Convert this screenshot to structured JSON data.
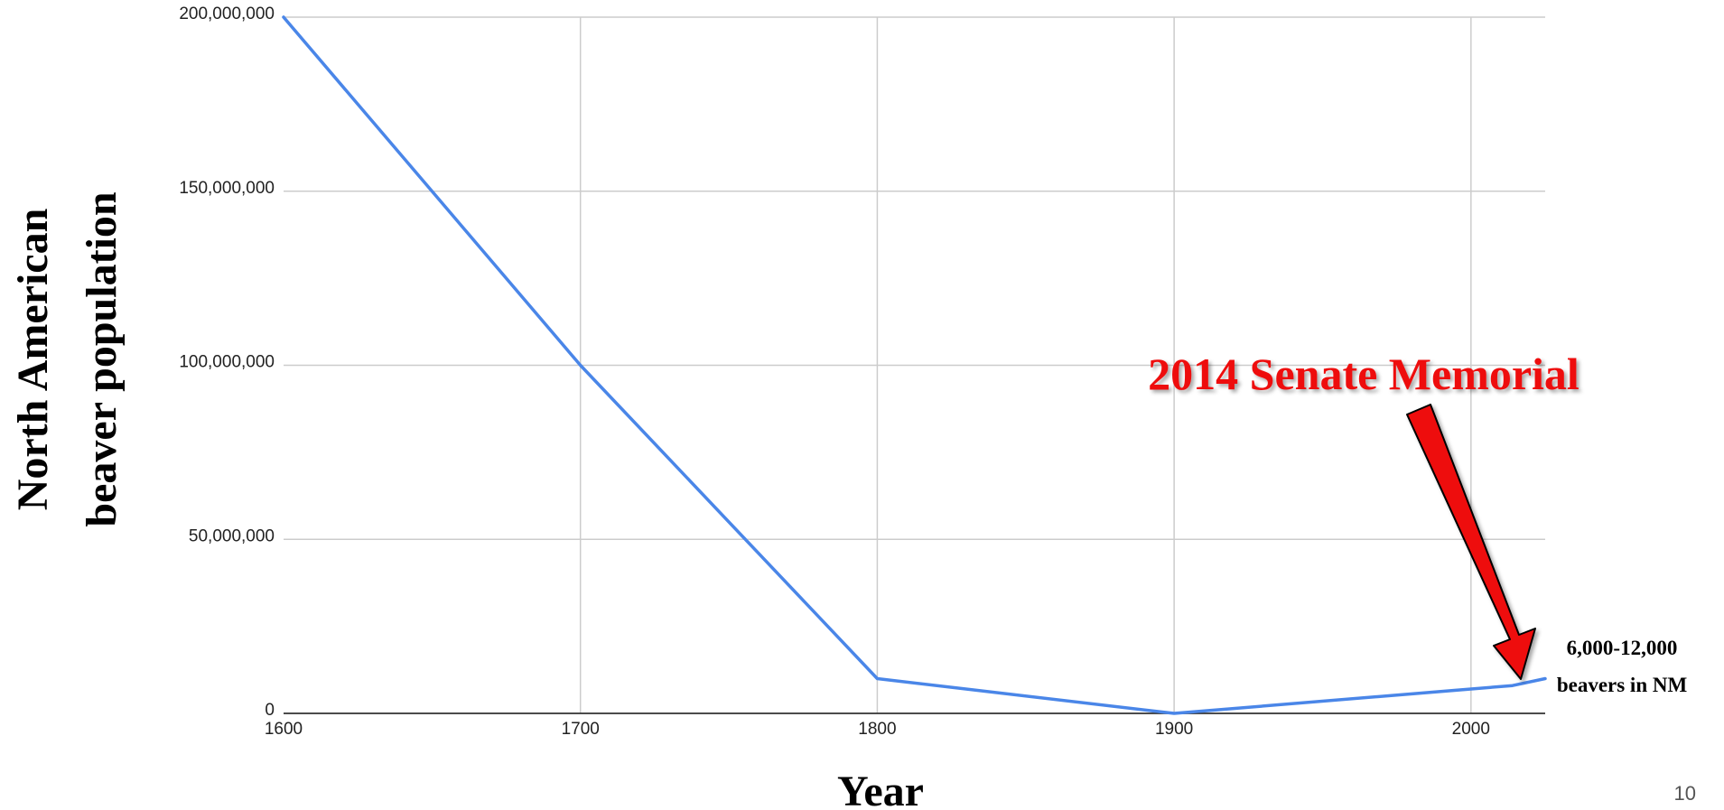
{
  "chart_data": {
    "type": "line",
    "title": "",
    "xlabel": "Year",
    "ylabel_lines": [
      "North American",
      "beaver population"
    ],
    "x": [
      1600,
      1700,
      1800,
      1900,
      2014,
      2025
    ],
    "series": [
      {
        "values": [
          200000000,
          100000000,
          10000000,
          0,
          8000000,
          10000000
        ],
        "color": "#4a86e8"
      }
    ],
    "xlim": [
      1600,
      2025
    ],
    "ylim": [
      0,
      200000000
    ],
    "x_ticks": [
      {
        "value": 1600,
        "label": "1600"
      },
      {
        "value": 1700,
        "label": "1700"
      },
      {
        "value": 1800,
        "label": "1800"
      },
      {
        "value": 1900,
        "label": "1900"
      },
      {
        "value": 2000,
        "label": "2000"
      }
    ],
    "y_ticks": [
      {
        "value": 0,
        "label": "0"
      },
      {
        "value": 50000000,
        "label": "50,000,000"
      },
      {
        "value": 100000000,
        "label": "100,000,000"
      },
      {
        "value": 150000000,
        "label": "150,000,000"
      },
      {
        "value": 200000000,
        "label": "200,000,000"
      }
    ],
    "grid": true,
    "annotations": {
      "memorial": {
        "text": "2014 Senate Memorial",
        "color": "#ee1111"
      },
      "nm_note": {
        "lines": [
          "6,000-12,000",
          "beavers in NM"
        ]
      }
    }
  },
  "page_number": "10"
}
